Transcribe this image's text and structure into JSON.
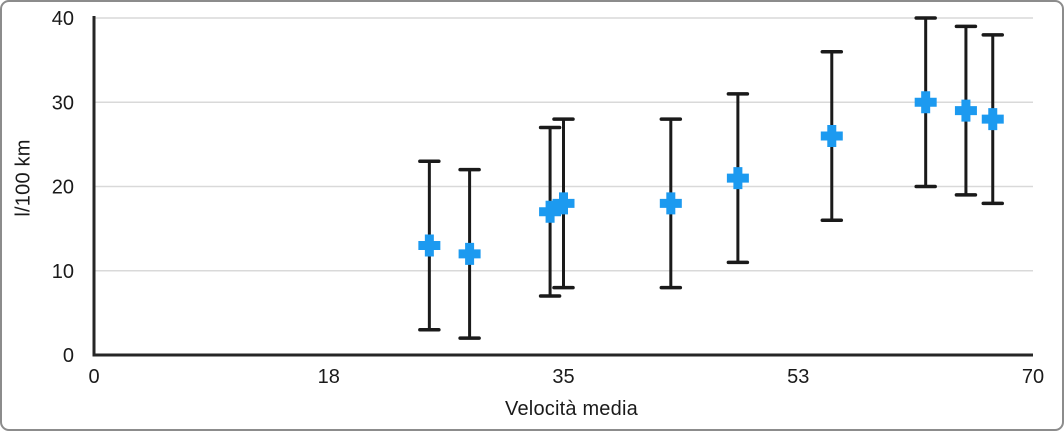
{
  "frame": {
    "background": "#ffffff",
    "border_color": "#8c8c8c"
  },
  "chart_data": {
    "type": "scatter",
    "title": "",
    "xlabel": "Velocità media",
    "ylabel": "l/100 km",
    "xlim": [
      0,
      70
    ],
    "ylim": [
      0,
      40
    ],
    "grid": "horizontal gridlines only",
    "legend": "none",
    "x_ticks": {
      "positions": [
        0,
        17.5,
        35,
        52.5,
        70
      ],
      "labels": [
        "0",
        "18",
        "35",
        "53",
        "70"
      ]
    },
    "y_ticks": {
      "positions": [
        0,
        10,
        20,
        30,
        40
      ],
      "labels": [
        "0",
        "10",
        "20",
        "30",
        "40"
      ]
    },
    "series": [
      {
        "marker": "plus",
        "marker_color": "#1c9af0",
        "error_bar_type": "y symmetric",
        "points": [
          {
            "x": 25,
            "y": 13,
            "err": 10
          },
          {
            "x": 28,
            "y": 12,
            "err": 10
          },
          {
            "x": 34,
            "y": 17,
            "err": 10
          },
          {
            "x": 35,
            "y": 18,
            "err": 10
          },
          {
            "x": 43,
            "y": 18,
            "err": 10
          },
          {
            "x": 48,
            "y": 21,
            "err": 10
          },
          {
            "x": 55,
            "y": 26,
            "err": 10
          },
          {
            "x": 62,
            "y": 30,
            "err": 10
          },
          {
            "x": 65,
            "y": 29,
            "err": 10
          },
          {
            "x": 67,
            "y": 28,
            "err": 10
          }
        ]
      }
    ],
    "colors": {
      "marker": "#1c9af0",
      "error_bar": "#1a1a1a",
      "axis": "#262626",
      "gridline": "#d9d9d9",
      "text": "#1a1a1a"
    }
  }
}
